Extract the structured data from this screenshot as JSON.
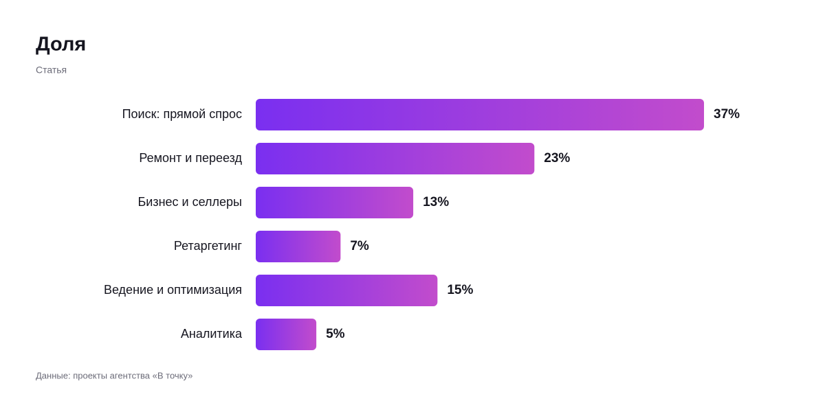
{
  "chart_data": {
    "type": "bar",
    "orientation": "horizontal",
    "title": "Доля",
    "subtitle": "Статья",
    "categories": [
      "Поиск: прямой спрос",
      "Ремонт и переезд",
      "Бизнес и селлеры",
      "Ретаргетинг",
      "Ведение и оптимизация",
      "Аналитика"
    ],
    "values": [
      37,
      23,
      13,
      7,
      15,
      5
    ],
    "value_labels": [
      "37%",
      "23%",
      "13%",
      "7%",
      "15%",
      "5%"
    ],
    "gradient": [
      "#7a2ff0",
      "#c24ccc"
    ],
    "source": "Данные: проекты агентства «В точку»"
  }
}
